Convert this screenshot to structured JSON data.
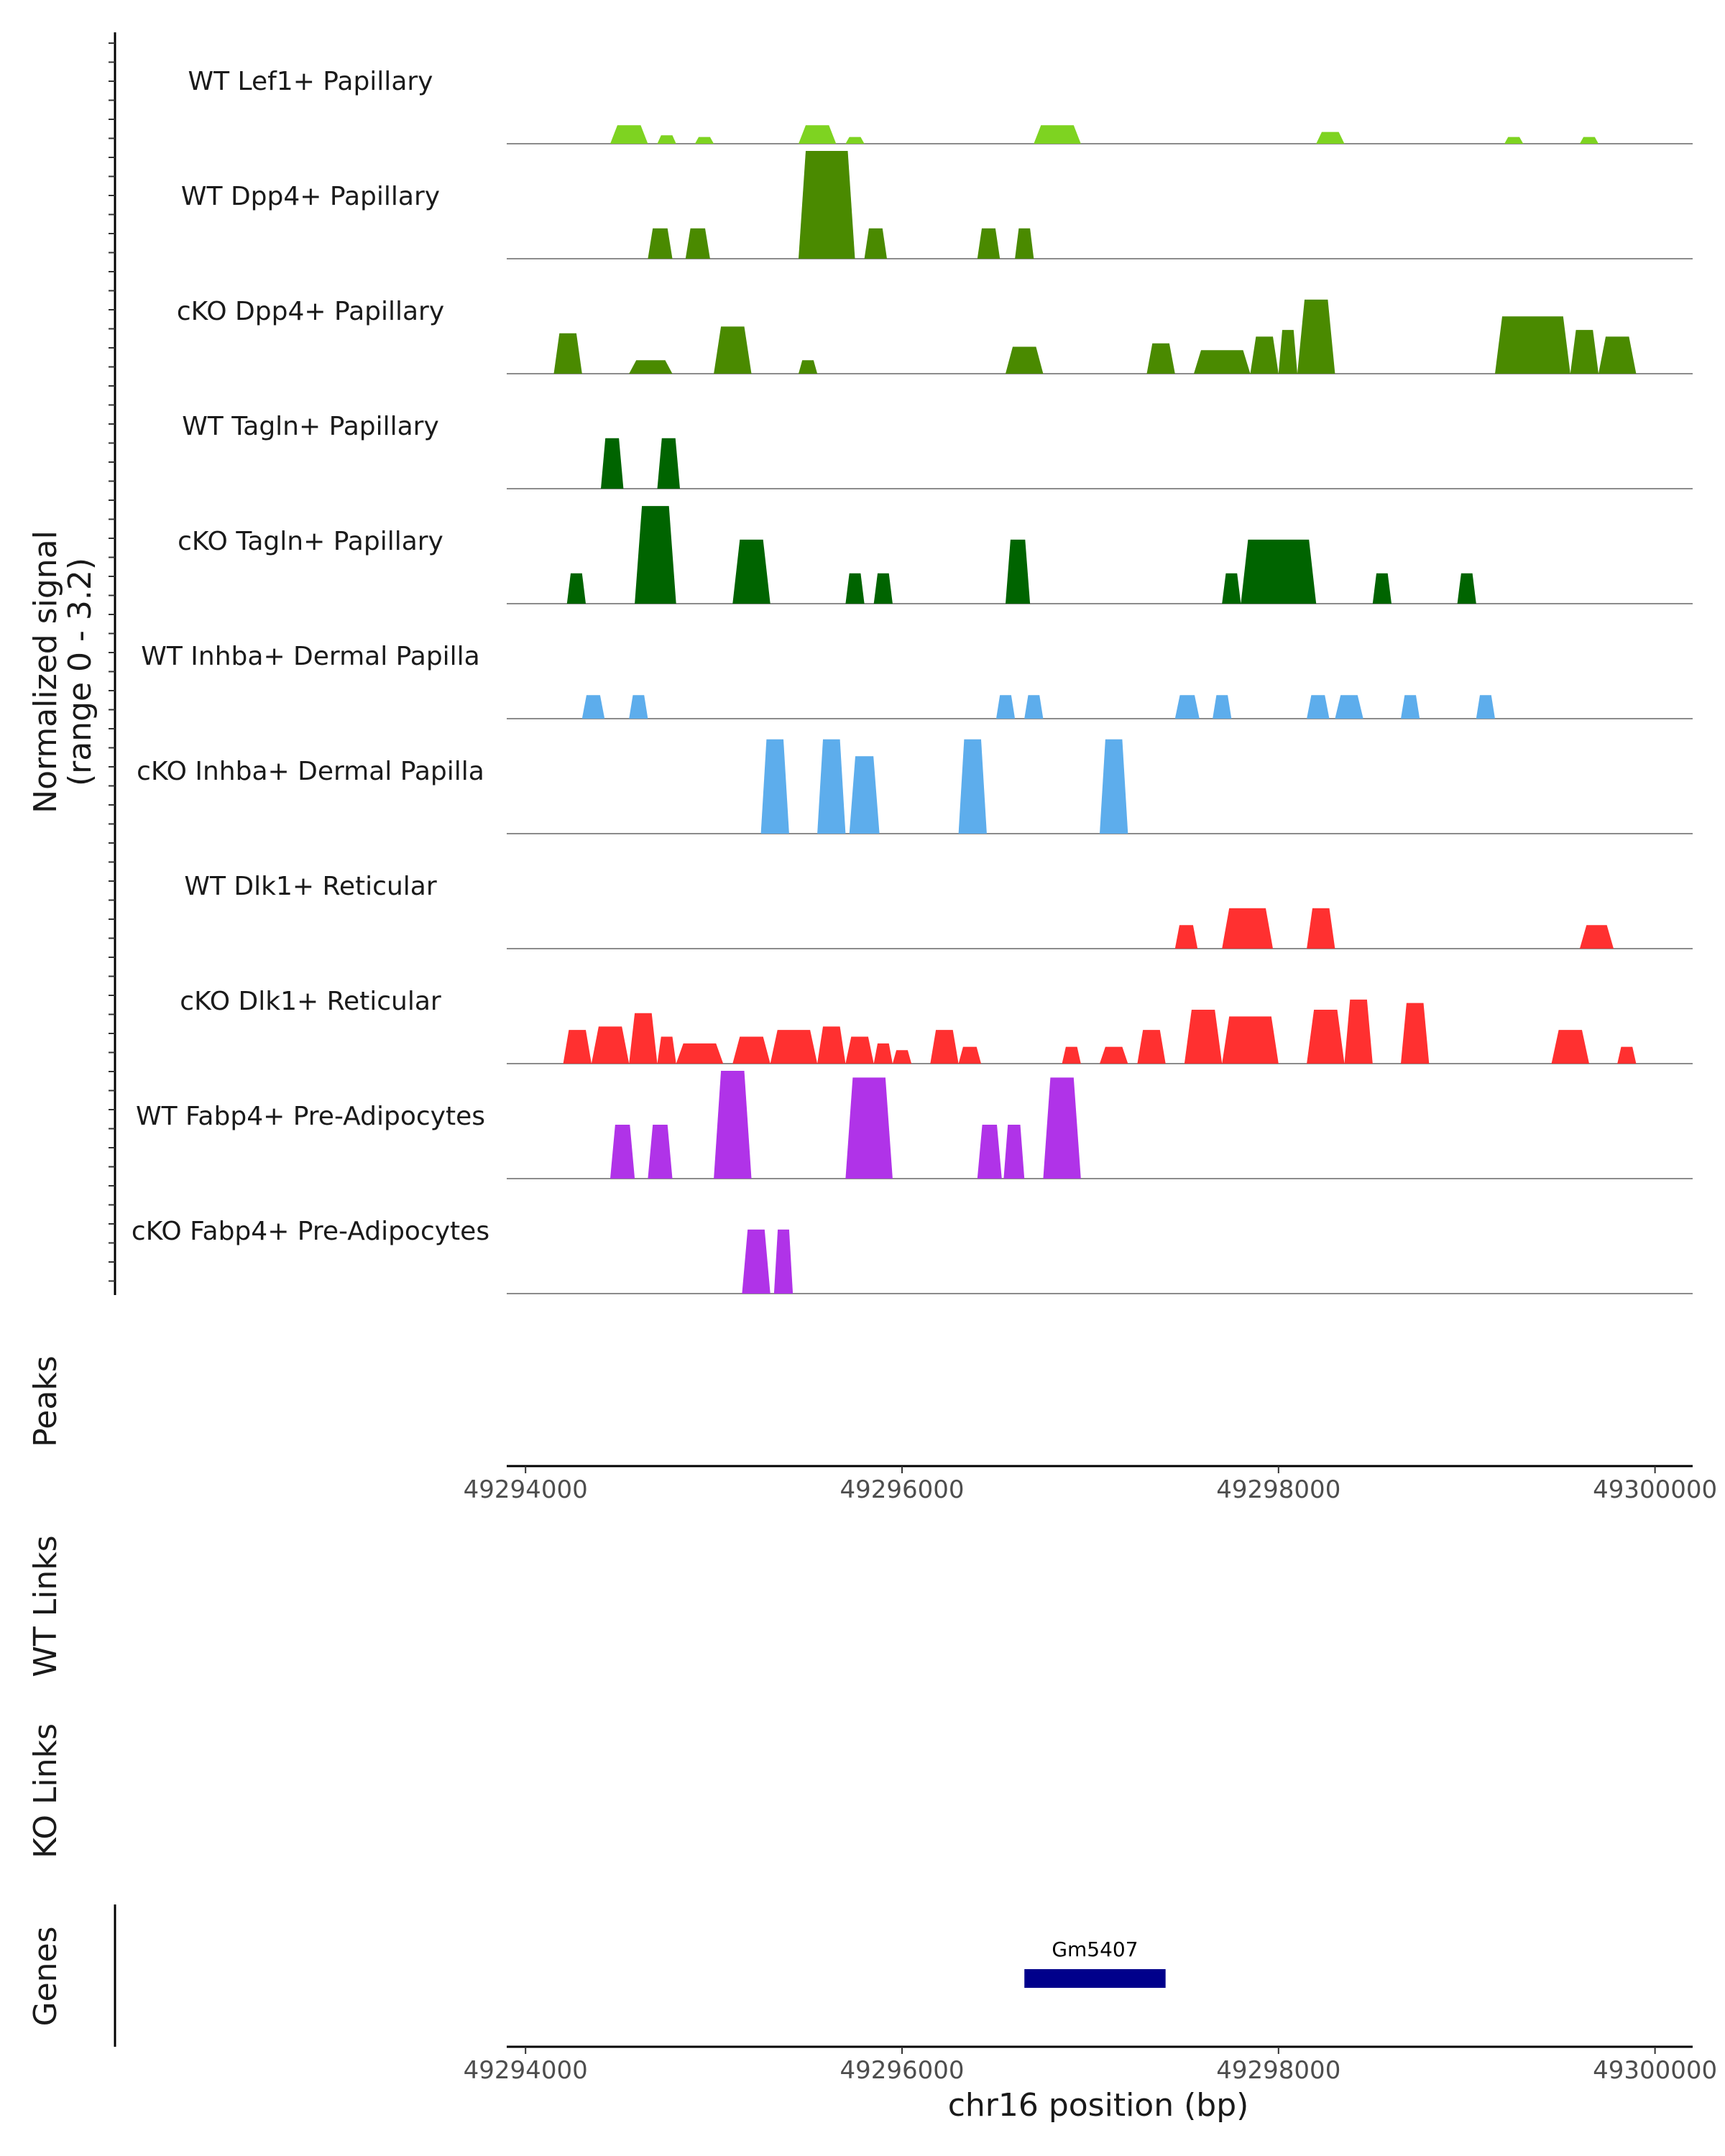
{
  "chart_data": {
    "type": "area",
    "title": "",
    "xlabel": "chr16 position (bp)",
    "ylabel": "Normalized signal\n(range 0 - 3.2)",
    "ylabel_lines": [
      "Normalized signal",
      "(range 0 - 3.2)"
    ],
    "ylim": [
      0,
      3.2
    ],
    "xlim": [
      49293900,
      49300200
    ],
    "x_ticks": [
      49294000,
      49296000,
      49298000,
      49300000
    ],
    "x_tick_labels": [
      "49294000",
      "49296000",
      "49298000",
      "49300000"
    ],
    "panel_titles": {
      "peaks": "Peaks",
      "wt_links": "WT Links",
      "ko_links": "KO Links",
      "genes": "Genes"
    },
    "genes": [
      {
        "name": "Gm5407",
        "start": 49296650,
        "end": 49297400,
        "color": "#00008B"
      }
    ],
    "series": [
      {
        "name": "WT Lef1+ Papillary",
        "color": "#7ED321",
        "peaks": [
          [
            49294450,
            49294650,
            0.55
          ],
          [
            49294700,
            49294800,
            0.25
          ],
          [
            49294900,
            49295000,
            0.2
          ],
          [
            49295450,
            49295650,
            0.55
          ],
          [
            49295700,
            49295800,
            0.2
          ],
          [
            49296700,
            49296950,
            0.55
          ],
          [
            49298200,
            49298350,
            0.35
          ],
          [
            49299200,
            49299300,
            0.2
          ],
          [
            49299600,
            49299700,
            0.2
          ]
        ]
      },
      {
        "name": "WT Dpp4+ Papillary",
        "color": "#4A8A00",
        "peaks": [
          [
            49294650,
            49294780,
            0.9
          ],
          [
            49294850,
            49294980,
            0.9
          ],
          [
            49295450,
            49295750,
            3.2
          ],
          [
            49295800,
            49295920,
            0.9
          ],
          [
            49296400,
            49296520,
            0.9
          ],
          [
            49296600,
            49296700,
            0.9
          ]
        ]
      },
      {
        "name": "cKO Dpp4+ Papillary",
        "color": "#4A8A00",
        "peaks": [
          [
            49294150,
            49294300,
            1.2
          ],
          [
            49294550,
            49294780,
            0.4
          ],
          [
            49295000,
            49295200,
            1.4
          ],
          [
            49295450,
            49295550,
            0.4
          ],
          [
            49296550,
            49296750,
            0.8
          ],
          [
            49297300,
            49297450,
            0.9
          ],
          [
            49297550,
            49297850,
            0.7
          ],
          [
            49297850,
            49298000,
            1.1
          ],
          [
            49298000,
            49298100,
            1.3
          ],
          [
            49298100,
            49298300,
            2.2
          ],
          [
            49299150,
            49299550,
            1.7
          ],
          [
            49299550,
            49299700,
            1.3
          ],
          [
            49299700,
            49299900,
            1.1
          ]
        ]
      },
      {
        "name": "WT Tagln+ Papillary",
        "color": "#006400",
        "peaks": [
          [
            49294400,
            49294520,
            1.5
          ],
          [
            49294700,
            49294820,
            1.5
          ]
        ]
      },
      {
        "name": "cKO Tagln+ Papillary",
        "color": "#006400",
        "peaks": [
          [
            49294220,
            49294320,
            0.9
          ],
          [
            49294580,
            49294800,
            2.9
          ],
          [
            49295100,
            49295300,
            1.9
          ],
          [
            49295700,
            49295800,
            0.9
          ],
          [
            49295850,
            49295950,
            0.9
          ],
          [
            49296550,
            49296680,
            1.9
          ],
          [
            49297700,
            49297800,
            0.9
          ],
          [
            49297800,
            49298200,
            1.9
          ],
          [
            49298500,
            49298600,
            0.9
          ],
          [
            49298950,
            49299050,
            0.9
          ]
        ]
      },
      {
        "name": "WT Inhba+ Dermal Papilla",
        "color": "#5DADEC",
        "peaks": [
          [
            49294300,
            49294420,
            0.7
          ],
          [
            49294550,
            49294650,
            0.7
          ],
          [
            49296500,
            49296600,
            0.7
          ],
          [
            49296650,
            49296750,
            0.7
          ],
          [
            49297450,
            49297580,
            0.7
          ],
          [
            49297650,
            49297750,
            0.7
          ],
          [
            49298150,
            49298270,
            0.7
          ],
          [
            49298300,
            49298450,
            0.7
          ],
          [
            49298650,
            49298750,
            0.7
          ],
          [
            49299050,
            49299150,
            0.7
          ]
        ]
      },
      {
        "name": "cKO Inhba+ Dermal Papilla",
        "color": "#5DADEC",
        "peaks": [
          [
            49295250,
            49295400,
            2.8
          ],
          [
            49295550,
            49295700,
            2.8
          ],
          [
            49295720,
            49295880,
            2.3
          ],
          [
            49296300,
            49296450,
            2.8
          ],
          [
            49297050,
            49297200,
            2.8
          ]
        ]
      },
      {
        "name": "WT Dlk1+ Reticular",
        "color": "#FF3030",
        "peaks": [
          [
            49297450,
            49297570,
            0.7
          ],
          [
            49297700,
            49297970,
            1.2
          ],
          [
            49298150,
            49298300,
            1.2
          ],
          [
            49299600,
            49299780,
            0.7
          ]
        ]
      },
      {
        "name": "cKO Dlk1+ Reticular",
        "color": "#FF3030",
        "peaks": [
          [
            49294200,
            49294350,
            1.0
          ],
          [
            49294350,
            49294550,
            1.1
          ],
          [
            49294550,
            49294700,
            1.5
          ],
          [
            49294700,
            49294800,
            0.8
          ],
          [
            49294800,
            49295050,
            0.6
          ],
          [
            49295100,
            49295300,
            0.8
          ],
          [
            49295300,
            49295550,
            1.0
          ],
          [
            49295550,
            49295700,
            1.1
          ],
          [
            49295700,
            49295850,
            0.8
          ],
          [
            49295850,
            49295950,
            0.6
          ],
          [
            49295950,
            49296050,
            0.4
          ],
          [
            49296150,
            49296300,
            1.0
          ],
          [
            49296300,
            49296420,
            0.5
          ],
          [
            49296850,
            49296950,
            0.5
          ],
          [
            49297050,
            49297200,
            0.5
          ],
          [
            49297250,
            49297400,
            1.0
          ],
          [
            49297500,
            49297700,
            1.6
          ],
          [
            49297700,
            49298000,
            1.4
          ],
          [
            49298150,
            49298350,
            1.6
          ],
          [
            49298350,
            49298500,
            1.9
          ],
          [
            49298650,
            49298800,
            1.8
          ],
          [
            49299450,
            49299650,
            1.0
          ],
          [
            49299800,
            49299900,
            0.5
          ]
        ]
      },
      {
        "name": "WT Fabp4+ Pre-Adipocytes",
        "color": "#B033E8",
        "peaks": [
          [
            49294450,
            49294580,
            1.6
          ],
          [
            49294650,
            49294780,
            1.6
          ],
          [
            49295000,
            49295200,
            3.2
          ],
          [
            49295700,
            49295950,
            3.0
          ],
          [
            49296400,
            49296530,
            1.6
          ],
          [
            49296540,
            49296650,
            1.6
          ],
          [
            49296750,
            49296950,
            3.0
          ]
        ]
      },
      {
        "name": "cKO Fabp4+ Pre-Adipocytes",
        "color": "#B033E8",
        "peaks": [
          [
            49295150,
            49295300,
            1.9
          ],
          [
            49295320,
            49295420,
            1.9
          ]
        ]
      }
    ]
  }
}
